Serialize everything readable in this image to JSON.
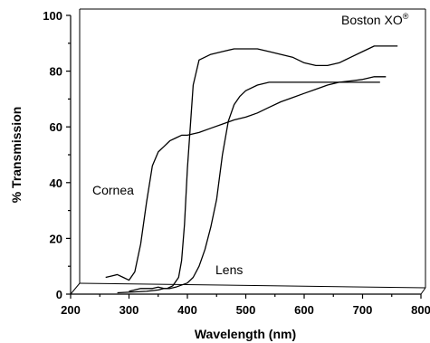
{
  "chart_data": {
    "type": "line",
    "title": "",
    "xlabel": "Wavelength (nm)",
    "ylabel": "% Transmission",
    "xlim": [
      200,
      800
    ],
    "ylim": [
      0,
      100
    ],
    "x_ticks": [
      200,
      300,
      400,
      500,
      600,
      700,
      800
    ],
    "y_ticks": [
      0,
      20,
      40,
      60,
      80,
      100
    ],
    "grid": false,
    "annotations": [
      {
        "id": "brand",
        "text": "Boston XO",
        "superscript": "®"
      },
      {
        "id": "cornea",
        "text": "Cornea"
      },
      {
        "id": "lens",
        "text": "Lens"
      }
    ],
    "series": [
      {
        "x": [
          280,
          330,
          350,
          360,
          365,
          375,
          385,
          390,
          395,
          400,
          410,
          420,
          440,
          460,
          480,
          500,
          520,
          540,
          560,
          580,
          600,
          620,
          640,
          660,
          680,
          700,
          720,
          740,
          760
        ],
        "y": [
          0.5,
          1,
          1.5,
          2,
          2,
          3,
          6,
          12,
          25,
          45,
          75,
          84,
          86,
          87,
          88,
          88,
          88,
          87,
          86,
          85,
          83,
          82,
          82,
          83,
          85,
          87,
          89,
          89,
          89
        ]
      },
      {
        "x": [
          260,
          270,
          280,
          290,
          300,
          310,
          320,
          330,
          340,
          350,
          360,
          370,
          380,
          390,
          400,
          420,
          440,
          460,
          480,
          500,
          520,
          540,
          560,
          580,
          600,
          620,
          640,
          660,
          680,
          700,
          720,
          740
        ],
        "y": [
          6,
          6.5,
          7,
          6,
          5,
          8,
          18,
          33,
          46,
          51,
          53,
          55,
          56,
          57,
          57,
          58,
          59.5,
          61,
          62.5,
          63.5,
          65,
          67,
          69,
          70.5,
          72,
          73.5,
          75,
          76,
          76.5,
          77,
          78,
          78
        ]
      },
      {
        "x": [
          300,
          320,
          340,
          350,
          360,
          370,
          380,
          400,
          410,
          420,
          430,
          440,
          450,
          460,
          470,
          480,
          490,
          500,
          520,
          540,
          560,
          580,
          600,
          620,
          640,
          660,
          680,
          700,
          720,
          730
        ],
        "y": [
          1,
          2,
          2,
          2.5,
          2,
          2,
          2.5,
          4,
          6,
          10,
          16,
          24,
          34,
          50,
          62,
          68,
          71,
          73,
          75,
          76,
          76,
          76,
          76,
          76,
          76,
          76,
          76,
          76,
          76,
          76
        ]
      }
    ]
  }
}
